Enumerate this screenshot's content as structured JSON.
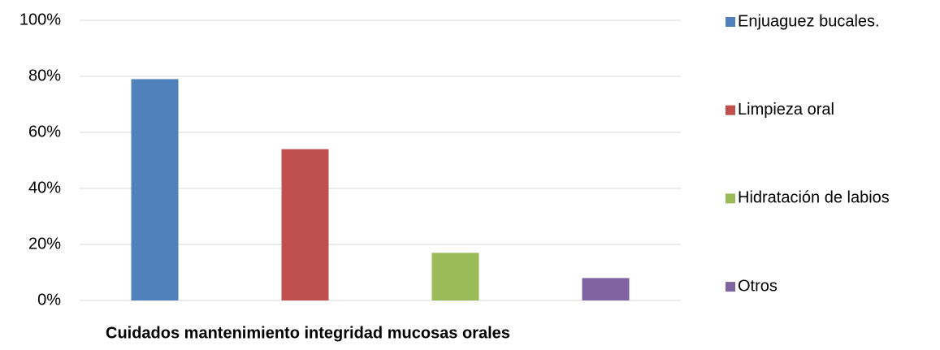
{
  "chart_data": {
    "type": "bar",
    "x_label": "Cuidados mantenimiento integridad mucosas orales",
    "categories": [
      null
    ],
    "series": [
      {
        "name": "Enjuaguez bucales.",
        "color": "#4f81bd",
        "values": [
          79
        ]
      },
      {
        "name": "Limpieza oral",
        "color": "#c0504d",
        "values": [
          54
        ]
      },
      {
        "name": "Hidratación de labios",
        "color": "#9bbb59",
        "values": [
          17
        ]
      },
      {
        "name": "Otros",
        "color": "#8064a2",
        "values": [
          8
        ]
      }
    ],
    "ylim": [
      0,
      100
    ],
    "yticks": [
      {
        "value": 0,
        "label": "0%"
      },
      {
        "value": 20,
        "label": "20%"
      },
      {
        "value": 40,
        "label": "40%"
      },
      {
        "value": 60,
        "label": "60%"
      },
      {
        "value": 80,
        "label": "80%"
      },
      {
        "value": 100,
        "label": "100%"
      }
    ],
    "grid": true,
    "legend": "right"
  }
}
